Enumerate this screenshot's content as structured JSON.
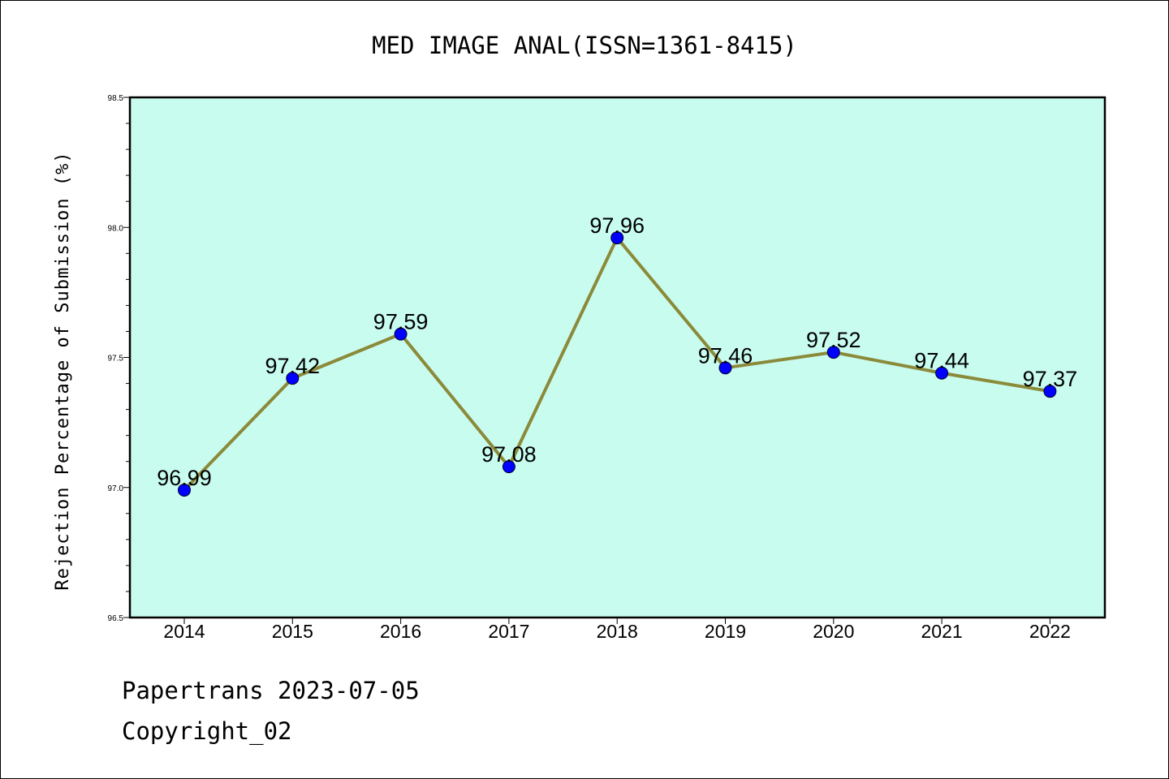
{
  "chart_data": {
    "type": "line",
    "title": "MED IMAGE ANAL(ISSN=1361-8415)",
    "xlabel": "",
    "ylabel": "Rejection Percentage of Submission (%)",
    "categories": [
      "2014",
      "2015",
      "2016",
      "2017",
      "2018",
      "2019",
      "2020",
      "2021",
      "2022"
    ],
    "values": [
      96.99,
      97.42,
      97.59,
      97.08,
      97.96,
      97.46,
      97.52,
      97.44,
      97.37
    ],
    "data_labels": [
      "96.99",
      "97.42",
      "97.59",
      "97.08",
      "97.96",
      "97.46",
      "97.52",
      "97.44",
      "97.37"
    ],
    "ylim": [
      96.5,
      98.5
    ],
    "yticks": [
      "96.5",
      "97.0",
      "97.5",
      "98.0",
      "98.5"
    ],
    "ytick_values": [
      96.5,
      97.0,
      97.5,
      98.0,
      98.5
    ],
    "grid": false,
    "legend": "none",
    "colors": {
      "plot_background": "#c8fcee",
      "line": "#8b8a3a",
      "marker": "#0000ff"
    }
  },
  "footer": {
    "line1": "Papertrans 2023-07-05",
    "line2": "Copyright_02"
  }
}
